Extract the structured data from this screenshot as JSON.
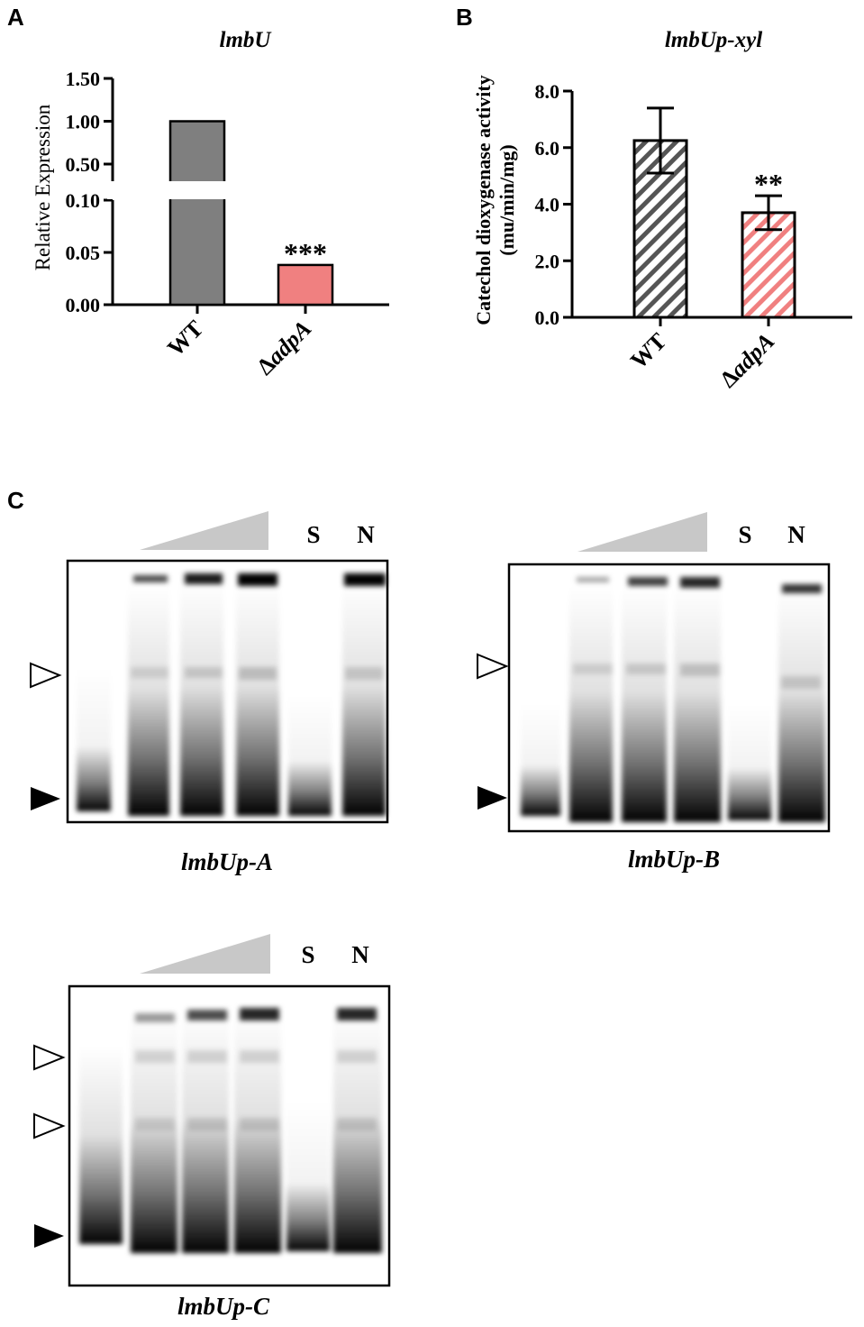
{
  "panel_labels": {
    "a": "A",
    "b": "B",
    "c": "C"
  },
  "chart_data": [
    {
      "type": "bar",
      "panel": "A",
      "title": "lmbU",
      "ylabel": "Relative Expression",
      "categories": [
        "WT",
        "ΔadpA"
      ],
      "values": [
        1.0,
        0.038
      ],
      "colors": [
        "#7f7f7f",
        "#f08080"
      ],
      "y_axis_broken": true,
      "lower_segment": {
        "ylim": [
          0,
          0.1
        ],
        "ticks": [
          "0.00",
          "0.05",
          "0.10"
        ],
        "tick_values": [
          0,
          0.05,
          0.1
        ]
      },
      "upper_segment": {
        "ylim": [
          0.3,
          1.5
        ],
        "ticks": [
          "0.50",
          "1.00",
          "1.50"
        ],
        "tick_values": [
          0.5,
          1.0,
          1.5
        ]
      },
      "annotations": [
        "",
        "***"
      ]
    },
    {
      "type": "bar",
      "panel": "B",
      "title": "lmbUp-xyl",
      "ylabel": "Catechol dioxygenase activity",
      "ylabel2": "(mu/min/mg)",
      "categories": [
        "WT",
        "ΔadpA"
      ],
      "values": [
        6.25,
        3.7
      ],
      "errors": [
        1.15,
        0.6
      ],
      "colors": [
        "#555555",
        "#f08080"
      ],
      "pattern": "diagonal-hatch",
      "ylim": [
        0,
        8
      ],
      "ticks": [
        "0.0",
        "2.0",
        "4.0",
        "6.0",
        "8.0"
      ],
      "tick_values": [
        0,
        2,
        4,
        6,
        8
      ],
      "annotations": [
        "",
        "**"
      ]
    }
  ],
  "gels": [
    {
      "caption": "lmbUp-A",
      "lane_s": "S",
      "lane_n": "N"
    },
    {
      "caption": "lmbUp-B",
      "lane_s": "S",
      "lane_n": "N"
    },
    {
      "caption": "lmbUp-C",
      "lane_s": "S",
      "lane_n": "N"
    }
  ]
}
